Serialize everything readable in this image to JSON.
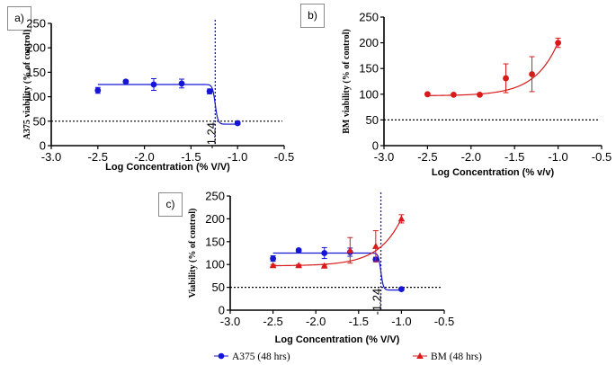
{
  "colors": {
    "blue": "#1515d6",
    "red": "#d81a1a",
    "black": "#000000"
  },
  "chart_data": [
    {
      "panel": "a)",
      "type": "scatter",
      "title": "",
      "xlabel": "Log Concentration  (% V/V)",
      "ylabel": "A375 viability (% of control)",
      "xlim": [
        -3.0,
        -0.5
      ],
      "ylim": [
        0,
        250
      ],
      "xticks": [
        -3.0,
        -2.5,
        -2.0,
        -1.5,
        -1.0,
        -0.5
      ],
      "xtick_labels": [
        "-3.0",
        "-2.5",
        "-2.0",
        "-1.5",
        "-1.0",
        "-0.5"
      ],
      "yticks": [
        0,
        50,
        100,
        150,
        200,
        250
      ],
      "ytick_labels": [
        "0",
        "50",
        "100",
        "150",
        "200",
        "250"
      ],
      "reference_line_y": 50,
      "ic50_line_x": -1.24,
      "ic50_label": "-1.24",
      "series": [
        {
          "name": "A375",
          "color": "blue",
          "marker": "circle",
          "x": [
            -2.5,
            -2.2,
            -1.9,
            -1.6,
            -1.3,
            -1.0
          ],
          "y": [
            113,
            131,
            125,
            127,
            111,
            46
          ],
          "err": [
            6,
            3,
            12,
            9,
            5,
            3
          ],
          "fit": {
            "top": 125,
            "bottom": 44,
            "logIC50": -1.24,
            "hill": -30
          }
        }
      ]
    },
    {
      "panel": "b)",
      "type": "scatter",
      "title": "",
      "xlabel": "Log Concentration  (% v/v)",
      "ylabel": "BM viability (% of control)",
      "xlim": [
        -3.0,
        -0.5
      ],
      "ylim": [
        0,
        250
      ],
      "xticks": [
        -3.0,
        -2.5,
        -2.0,
        -1.5,
        -1.0,
        -0.5
      ],
      "xtick_labels": [
        "-3.0",
        "-2.5",
        "-2.0",
        "-1.5",
        "-1.0",
        "-0.5"
      ],
      "yticks": [
        0,
        50,
        100,
        150,
        200,
        250
      ],
      "ytick_labels": [
        "0",
        "50",
        "100",
        "150",
        "200",
        "250"
      ],
      "reference_line_y": 50,
      "series": [
        {
          "name": "BM",
          "color": "red",
          "marker": "circle",
          "x": [
            -2.5,
            -2.2,
            -1.9,
            -1.6,
            -1.3,
            -1.0
          ],
          "y": [
            100,
            99,
            99,
            131,
            139,
            200
          ],
          "err": [
            2,
            2,
            2,
            28,
            34,
            9
          ],
          "fit": {
            "base": 97,
            "amp": 104,
            "rate": 3.8,
            "x0": -1.0
          }
        }
      ]
    },
    {
      "panel": "c)",
      "type": "scatter",
      "title": "",
      "xlabel": "Log Concentration  (% V/V)",
      "ylabel": "Viability (% of control)",
      "xlim": [
        -3.0,
        -0.5
      ],
      "ylim": [
        0,
        250
      ],
      "xticks": [
        -3.0,
        -2.5,
        -2.0,
        -1.5,
        -1.0,
        -0.5
      ],
      "xtick_labels": [
        "-3.0",
        "-2.5",
        "-2.0",
        "-1.5",
        "-1.0",
        "-0.5"
      ],
      "yticks": [
        0,
        50,
        100,
        150,
        200,
        250
      ],
      "ytick_labels": [
        "0",
        "50",
        "100",
        "150",
        "200",
        "250"
      ],
      "reference_line_y": 50,
      "ic50_line_x": -1.24,
      "ic50_label": "-1.24",
      "legend": [
        {
          "label": "A375 (48 hrs)",
          "color": "blue",
          "marker": "circle"
        },
        {
          "label": "BM (48 hrs)",
          "color": "red",
          "marker": "triangle"
        }
      ],
      "series": [
        {
          "name": "A375 (48 hrs)",
          "color": "blue",
          "marker": "circle",
          "x": [
            -2.5,
            -2.2,
            -1.9,
            -1.6,
            -1.3,
            -1.0
          ],
          "y": [
            113,
            131,
            125,
            127,
            111,
            46
          ],
          "err": [
            6,
            3,
            12,
            9,
            5,
            3
          ],
          "fit": {
            "top": 125,
            "bottom": 44,
            "logIC50": -1.24,
            "hill": -30
          }
        },
        {
          "name": "BM (48 hrs)",
          "color": "red",
          "marker": "triangle",
          "x": [
            -2.5,
            -2.2,
            -1.9,
            -1.6,
            -1.3,
            -1.0
          ],
          "y": [
            98,
            98,
            97,
            131,
            140,
            200
          ],
          "err": [
            2,
            2,
            2,
            28,
            34,
            9
          ],
          "fit": {
            "base": 97,
            "amp": 104,
            "rate": 3.8,
            "x0": -1.0
          }
        }
      ]
    }
  ]
}
